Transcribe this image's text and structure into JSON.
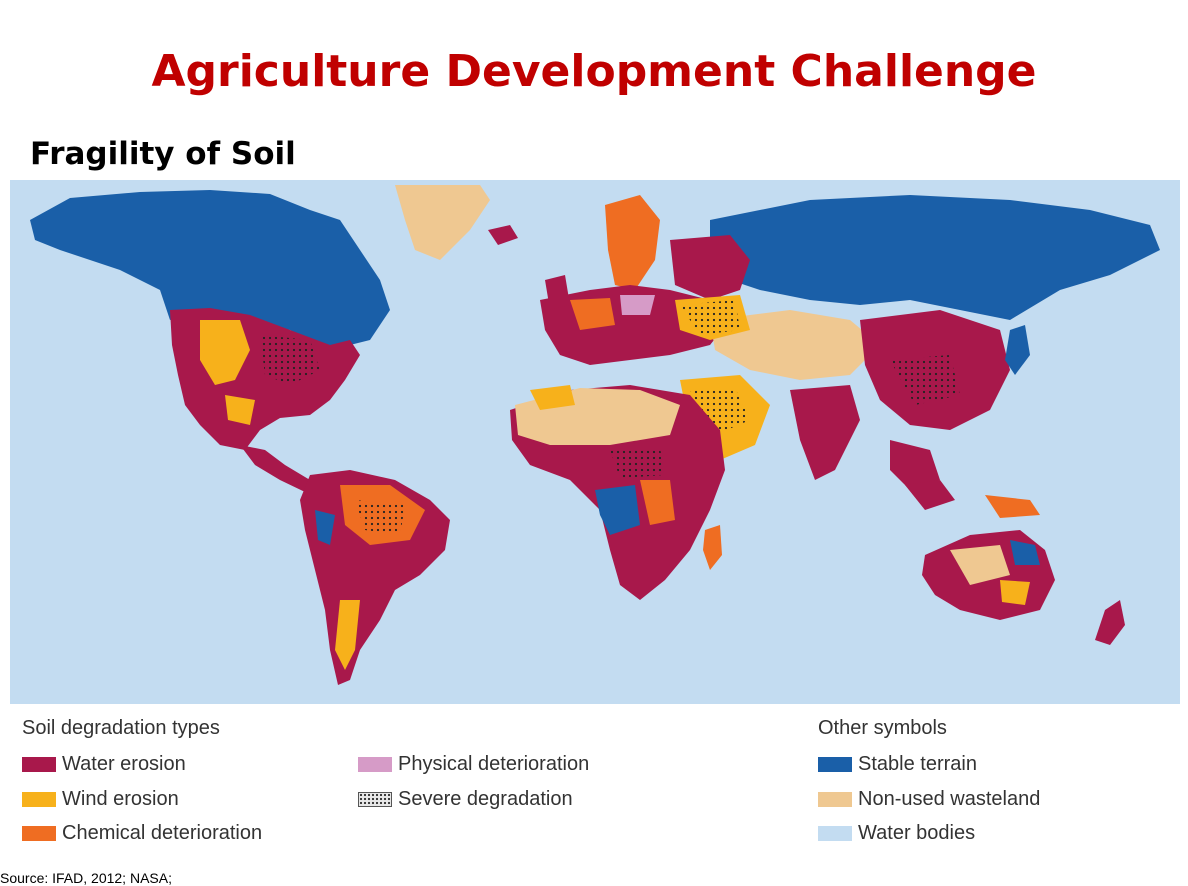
{
  "title": "Agriculture Development Challenge",
  "subtitle": "Fragility of Soil",
  "legend": {
    "soil_heading": "Soil degradation types",
    "soil_items": [
      {
        "label": "Water erosion",
        "color": "#a8184b",
        "icon": "solid"
      },
      {
        "label": "Wind erosion",
        "color": "#f7b11b",
        "icon": "solid"
      },
      {
        "label": "Chemical deterioration",
        "color": "#ef6d22",
        "icon": "solid"
      },
      {
        "label": "Physical deterioration",
        "color": "#d69bc7",
        "icon": "solid"
      },
      {
        "label": "Severe degradation",
        "color": "#333333",
        "icon": "dot-pattern"
      }
    ],
    "other_heading": "Other symbols",
    "other_items": [
      {
        "label": "Stable terrain",
        "color": "#1a5fa8",
        "icon": "solid"
      },
      {
        "label": "Non-used wasteland",
        "color": "#efc891",
        "icon": "solid"
      },
      {
        "label": "Water bodies",
        "color": "#c3dcf1",
        "icon": "solid"
      }
    ]
  },
  "source": "Source: IFAD, 2012; NASA;",
  "map_colors": {
    "ocean": "#c3dcf1",
    "stable": "#1a5fa8",
    "water_erosion": "#a8184b",
    "wind_erosion": "#f7b11b",
    "chemical": "#ef6d22",
    "physical": "#d69bc7",
    "wasteland": "#efc891"
  }
}
